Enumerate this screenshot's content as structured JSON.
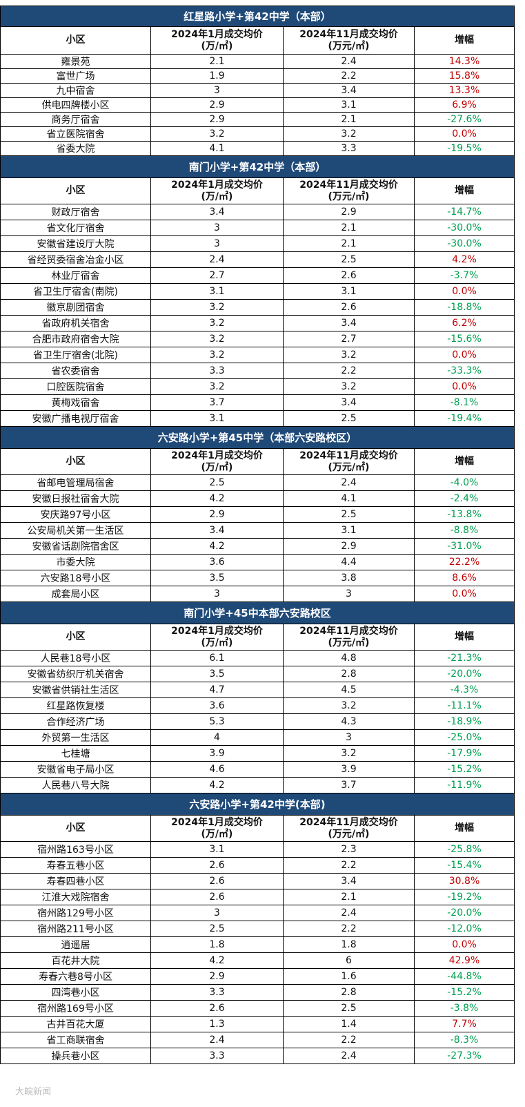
{
  "sections": [
    {
      "title": "红星路小学+第42中学（本部）",
      "headers": [
        [
          "小区"
        ],
        [
          "2024年1月成交均价",
          "(万/㎡)"
        ],
        [
          "2024年11月成交均价",
          "(万元/㎡)"
        ],
        [
          "增幅"
        ]
      ],
      "rows": [
        [
          "雍景苑",
          2.1,
          2.4,
          "14.3%"
        ],
        [
          "富世广场",
          1.9,
          2.2,
          "15.8%"
        ],
        [
          "九中宿舍",
          3,
          3.4,
          "13.3%"
        ],
        [
          "供电四牌楼小区",
          2.9,
          3.1,
          "6.9%"
        ],
        [
          "商务厅宿舍",
          2.9,
          2.1,
          "-27.6%"
        ],
        [
          "省立医院宿舍",
          3.2,
          3.2,
          "0.0%"
        ],
        [
          "省委大院",
          4.1,
          3.3,
          "-19.5%"
        ]
      ]
    },
    {
      "title": "南门小学+第42中学（本部）",
      "headers": [
        [
          "小区"
        ],
        [
          "2024年1月成交均价",
          "(万/㎡)"
        ],
        [
          "2024年11月成交均价",
          "(万元/㎡)"
        ],
        [
          "增幅"
        ]
      ],
      "rows": [
        [
          "财政厅宿舍",
          3.4,
          2.9,
          "-14.7%"
        ],
        [
          "省文化厅宿舍",
          3,
          2.1,
          "-30.0%"
        ],
        [
          "安徽省建设厅大院",
          3,
          2.1,
          "-30.0%"
        ],
        [
          "省经贸委宿舍冶金小区",
          2.4,
          2.5,
          "4.2%"
        ],
        [
          "林业厅宿舍",
          2.7,
          2.6,
          "-3.7%"
        ],
        [
          "省卫生厅宿舍(南院)",
          3.1,
          3.1,
          "0.0%"
        ],
        [
          "徽京剧团宿舍",
          3.2,
          2.6,
          "-18.8%"
        ],
        [
          "省政府机关宿舍",
          3.2,
          3.4,
          "6.2%"
        ],
        [
          "合肥市政府宿舍大院",
          3.2,
          2.7,
          "-15.6%"
        ],
        [
          "省卫生厅宿舍(北院)",
          3.2,
          3.2,
          "0.0%"
        ],
        [
          "省农委宿舍",
          3.3,
          2.2,
          "-33.3%"
        ],
        [
          "口腔医院宿舍",
          3.2,
          3.2,
          "0.0%"
        ],
        [
          "黄梅戏宿舍",
          3.7,
          3.4,
          "-8.1%"
        ],
        [
          "安徽广播电视厅宿舍",
          3.1,
          2.5,
          "-19.4%"
        ]
      ]
    },
    {
      "title": "六安路小学+第45中学（本部六安路校区）",
      "headers": [
        [
          "小区"
        ],
        [
          "2024年1月成交均价",
          "(万/㎡)"
        ],
        [
          "2024年11月成交均价",
          "(万元/㎡)"
        ],
        [
          "增幅"
        ]
      ],
      "rows": [
        [
          "省邮电管理局宿舍",
          2.5,
          2.4,
          "-4.0%"
        ],
        [
          "安徽日报社宿舍大院",
          4.2,
          4.1,
          "-2.4%"
        ],
        [
          "安庆路97号小区",
          2.9,
          2.5,
          "-13.8%"
        ],
        [
          "公安局机关第一生活区",
          3.4,
          3.1,
          "-8.8%"
        ],
        [
          "安徽省话剧院宿舍区",
          4.2,
          2.9,
          "-31.0%"
        ],
        [
          "市委大院",
          3.6,
          4.4,
          "22.2%"
        ],
        [
          "六安路18号小区",
          3.5,
          3.8,
          "8.6%"
        ],
        [
          "成套局小区",
          3,
          3,
          "0.0%"
        ]
      ]
    },
    {
      "title": "南门小学+45中本部六安路校区",
      "headers": [
        [
          "小区"
        ],
        [
          "2024年1月成交均价",
          "(万/㎡)"
        ],
        [
          "2024年11月成交均价",
          "(万元/㎡)"
        ],
        [
          "增幅"
        ]
      ],
      "rows": [
        [
          "人民巷18号小区",
          6.1,
          4.8,
          "-21.3%"
        ],
        [
          "安徽省纺织厅机关宿舍",
          3.5,
          2.8,
          "-20.0%"
        ],
        [
          "安徽省供销社生活区",
          4.7,
          4.5,
          "-4.3%"
        ],
        [
          "红星路恢复楼",
          3.6,
          3.2,
          "-11.1%"
        ],
        [
          "合作经济广场",
          5.3,
          4.3,
          "-18.9%"
        ],
        [
          "外贸第一生活区",
          4,
          3,
          "-25.0%"
        ],
        [
          "七桂塘",
          3.9,
          3.2,
          "-17.9%"
        ],
        [
          "安徽省电子局小区",
          4.6,
          3.9,
          "-15.2%"
        ],
        [
          "人民巷八号大院",
          4.2,
          3.7,
          "-11.9%"
        ]
      ]
    },
    {
      "title": "六安路小学+第42中学(本部)",
      "headers": [
        [
          "小区"
        ],
        [
          "2024年1月成交均价",
          "(万/㎡)"
        ],
        [
          "2024年11月成交均价",
          "(万元/㎡)"
        ],
        [
          "增幅"
        ]
      ],
      "rows": [
        [
          "宿州路163号小区",
          3.1,
          2.3,
          "-25.8%"
        ],
        [
          "寿春五巷小区",
          2.6,
          2.2,
          "-15.4%"
        ],
        [
          "寿春四巷小区",
          2.6,
          3.4,
          "30.8%"
        ],
        [
          "江淮大戏院宿舍",
          2.6,
          2.1,
          "-19.2%"
        ],
        [
          "宿州路129号小区",
          3,
          2.4,
          "-20.0%"
        ],
        [
          "宿州路211号小区",
          2.5,
          2.2,
          "-12.0%"
        ],
        [
          "逍遥居",
          1.8,
          1.8,
          "0.0%"
        ],
        [
          "百花井大院",
          4.2,
          6,
          "42.9%"
        ],
        [
          "寿春六巷8号小区",
          2.9,
          1.6,
          "-44.8%"
        ],
        [
          "四湾巷小区",
          3.3,
          2.8,
          "-15.2%"
        ],
        [
          "宿州路169号小区",
          2.6,
          2.5,
          "-3.8%"
        ],
        [
          "古井百花大厦",
          1.3,
          1.4,
          "7.7%"
        ],
        [
          "省工商联宿舍",
          2.4,
          2.2,
          "-8.3%"
        ],
        [
          "操兵巷小区",
          3.3,
          2.4,
          "-27.3%"
        ]
      ]
    }
  ],
  "footer": "大皖新闻"
}
